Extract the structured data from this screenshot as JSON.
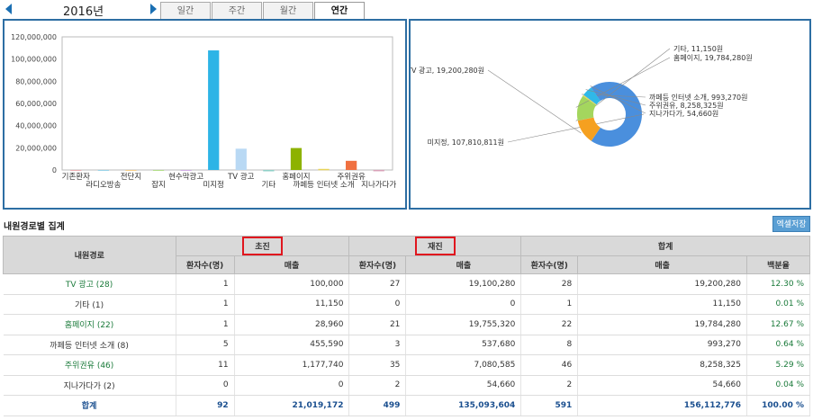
{
  "year": "2016년",
  "tabs": [
    "일간",
    "주간",
    "월간",
    "연간"
  ],
  "section_title": "내원경로별 집계",
  "excel_button": "엑셀저장",
  "chart_data": [
    {
      "type": "bar",
      "categories": [
        "기존환자",
        "라디오방송",
        "전단지",
        "잡지",
        "현수막광고",
        "미지정",
        "TV 광고",
        "기타",
        "홈페이지",
        "까페등 인터넷 소개",
        "주위권유",
        "지나가다가"
      ],
      "values": [
        0,
        0,
        0,
        0,
        0,
        107810811,
        19200280,
        11150,
        19784280,
        993270,
        8258325,
        54660
      ],
      "colors": [
        "#e89aa0",
        "#7ec8e3",
        "#f5c26b",
        "#9fd66b",
        "#c79be0",
        "#2db4e6",
        "#b9d9f4",
        "#8fd0c8",
        "#8db200",
        "#e8d45a",
        "#f07040",
        "#d8a0b8"
      ],
      "yticks": [
        "0",
        "20,000,000",
        "40,000,000",
        "60,000,000",
        "80,000,000",
        "100,000,000",
        "120,000,000"
      ],
      "ylim": [
        0,
        120000000
      ]
    },
    {
      "type": "pie",
      "slices": [
        {
          "label": "미지정, 107,810,811원",
          "value": 107810811,
          "color": "#4a8fdd"
        },
        {
          "label": "TV 광고, 19,200,280원",
          "value": 19200280,
          "color": "#f5a020"
        },
        {
          "label": "기타, 11,150원",
          "value": 11150,
          "color": "#888888"
        },
        {
          "label": "홈페이지, 19,784,280원",
          "value": 19784280,
          "color": "#a4d65e"
        },
        {
          "label": "까페등 인터넷 소개, 993,270원",
          "value": 993270,
          "color": "#e8d45a"
        },
        {
          "label": "주위권유, 8,258,325원",
          "value": 8258325,
          "color": "#30b8e8"
        },
        {
          "label": "지나가다가, 54,660원",
          "value": 54660,
          "color": "#6a6ad0"
        }
      ]
    }
  ],
  "table": {
    "header_route": "내원경로",
    "group_first": "초진",
    "group_revisit": "재진",
    "group_total": "합계",
    "sub_patients": "환자수(명)",
    "sub_sales": "매출",
    "sub_percent": "백분율",
    "rows": [
      {
        "name": "TV 광고 (28)",
        "c1": "1",
        "s1": "100,000",
        "c2": "27",
        "s2": "19,100,280",
        "c3": "28",
        "s3": "19,200,280",
        "p": "12.30 %",
        "green": true
      },
      {
        "name": "기타 (1)",
        "c1": "1",
        "s1": "11,150",
        "c2": "0",
        "s2": "0",
        "c3": "1",
        "s3": "11,150",
        "p": "0.01 %",
        "green": false
      },
      {
        "name": "홈페이지 (22)",
        "c1": "1",
        "s1": "28,960",
        "c2": "21",
        "s2": "19,755,320",
        "c3": "22",
        "s3": "19,784,280",
        "p": "12.67 %",
        "green": true
      },
      {
        "name": "까페등 인터넷 소개 (8)",
        "c1": "5",
        "s1": "455,590",
        "c2": "3",
        "s2": "537,680",
        "c3": "8",
        "s3": "993,270",
        "p": "0.64 %",
        "green": false
      },
      {
        "name": "주위권유 (46)",
        "c1": "11",
        "s1": "1,177,740",
        "c2": "35",
        "s2": "7,080,585",
        "c3": "46",
        "s3": "8,258,325",
        "p": "5.29 %",
        "green": true
      },
      {
        "name": "지나가다가 (2)",
        "c1": "0",
        "s1": "0",
        "c2": "2",
        "s2": "54,660",
        "c3": "2",
        "s3": "54,660",
        "p": "0.04 %",
        "green": false
      }
    ],
    "total": {
      "name": "합계",
      "c1": "92",
      "s1": "21,019,172",
      "c2": "499",
      "s2": "135,093,604",
      "c3": "591",
      "s3": "156,112,776",
      "p": "100.00 %"
    }
  }
}
